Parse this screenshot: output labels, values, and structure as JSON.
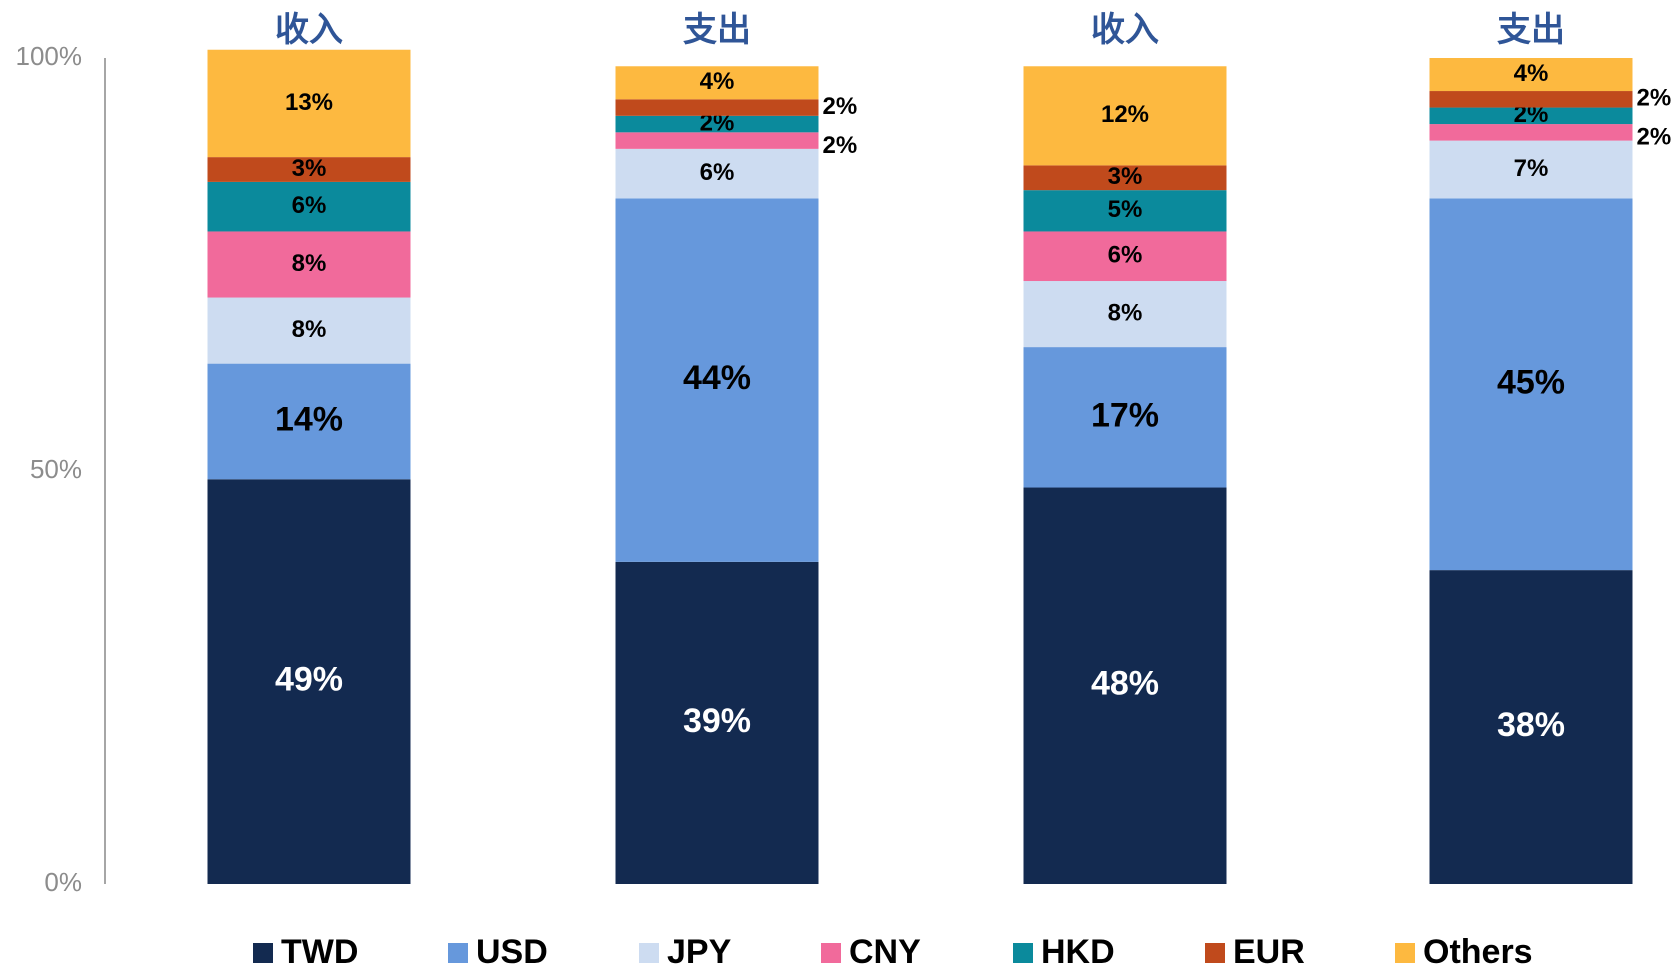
{
  "chart_data": {
    "type": "stacked_bar",
    "categories": [
      "收入",
      "支出",
      "收入",
      "支出"
    ],
    "series": [
      {
        "name": "TWD",
        "color": "#132a50",
        "values": [
          49,
          39,
          48,
          38
        ],
        "value_labels": [
          "49%",
          "39%",
          "48%",
          "38%"
        ]
      },
      {
        "name": "USD",
        "color": "#6698dc",
        "values": [
          14,
          44,
          17,
          45
        ],
        "value_labels": [
          "14%",
          "44%",
          "17%",
          "45%"
        ]
      },
      {
        "name": "JPY",
        "color": "#cddcf1",
        "values": [
          8,
          6,
          8,
          7
        ],
        "value_labels": [
          "8%",
          "6%",
          "8%",
          "7%"
        ]
      },
      {
        "name": "CNY",
        "color": "#f16a9b",
        "values": [
          8,
          2,
          6,
          2
        ],
        "value_labels": [
          "8%",
          "2%",
          "6%",
          "2%"
        ]
      },
      {
        "name": "HKD",
        "color": "#0b8a9c",
        "values": [
          6,
          2,
          5,
          2
        ],
        "value_labels": [
          "6%",
          "2%",
          "5%",
          "2%"
        ]
      },
      {
        "name": "EUR",
        "color": "#c04a1c",
        "values": [
          3,
          2,
          3,
          2
        ],
        "value_labels": [
          "3%",
          "2%",
          "3%",
          "2%"
        ]
      },
      {
        "name": "Others",
        "color": "#fdb940",
        "values": [
          13,
          4,
          12,
          4
        ],
        "value_labels": [
          "13%",
          "4%",
          "12%",
          "4%"
        ]
      }
    ],
    "ylim": [
      0,
      100
    ],
    "yticks": [
      {
        "value": 0,
        "label": "0%"
      },
      {
        "value": 50,
        "label": "50%"
      },
      {
        "value": 100,
        "label": "100%"
      }
    ],
    "legend": "bottom"
  }
}
